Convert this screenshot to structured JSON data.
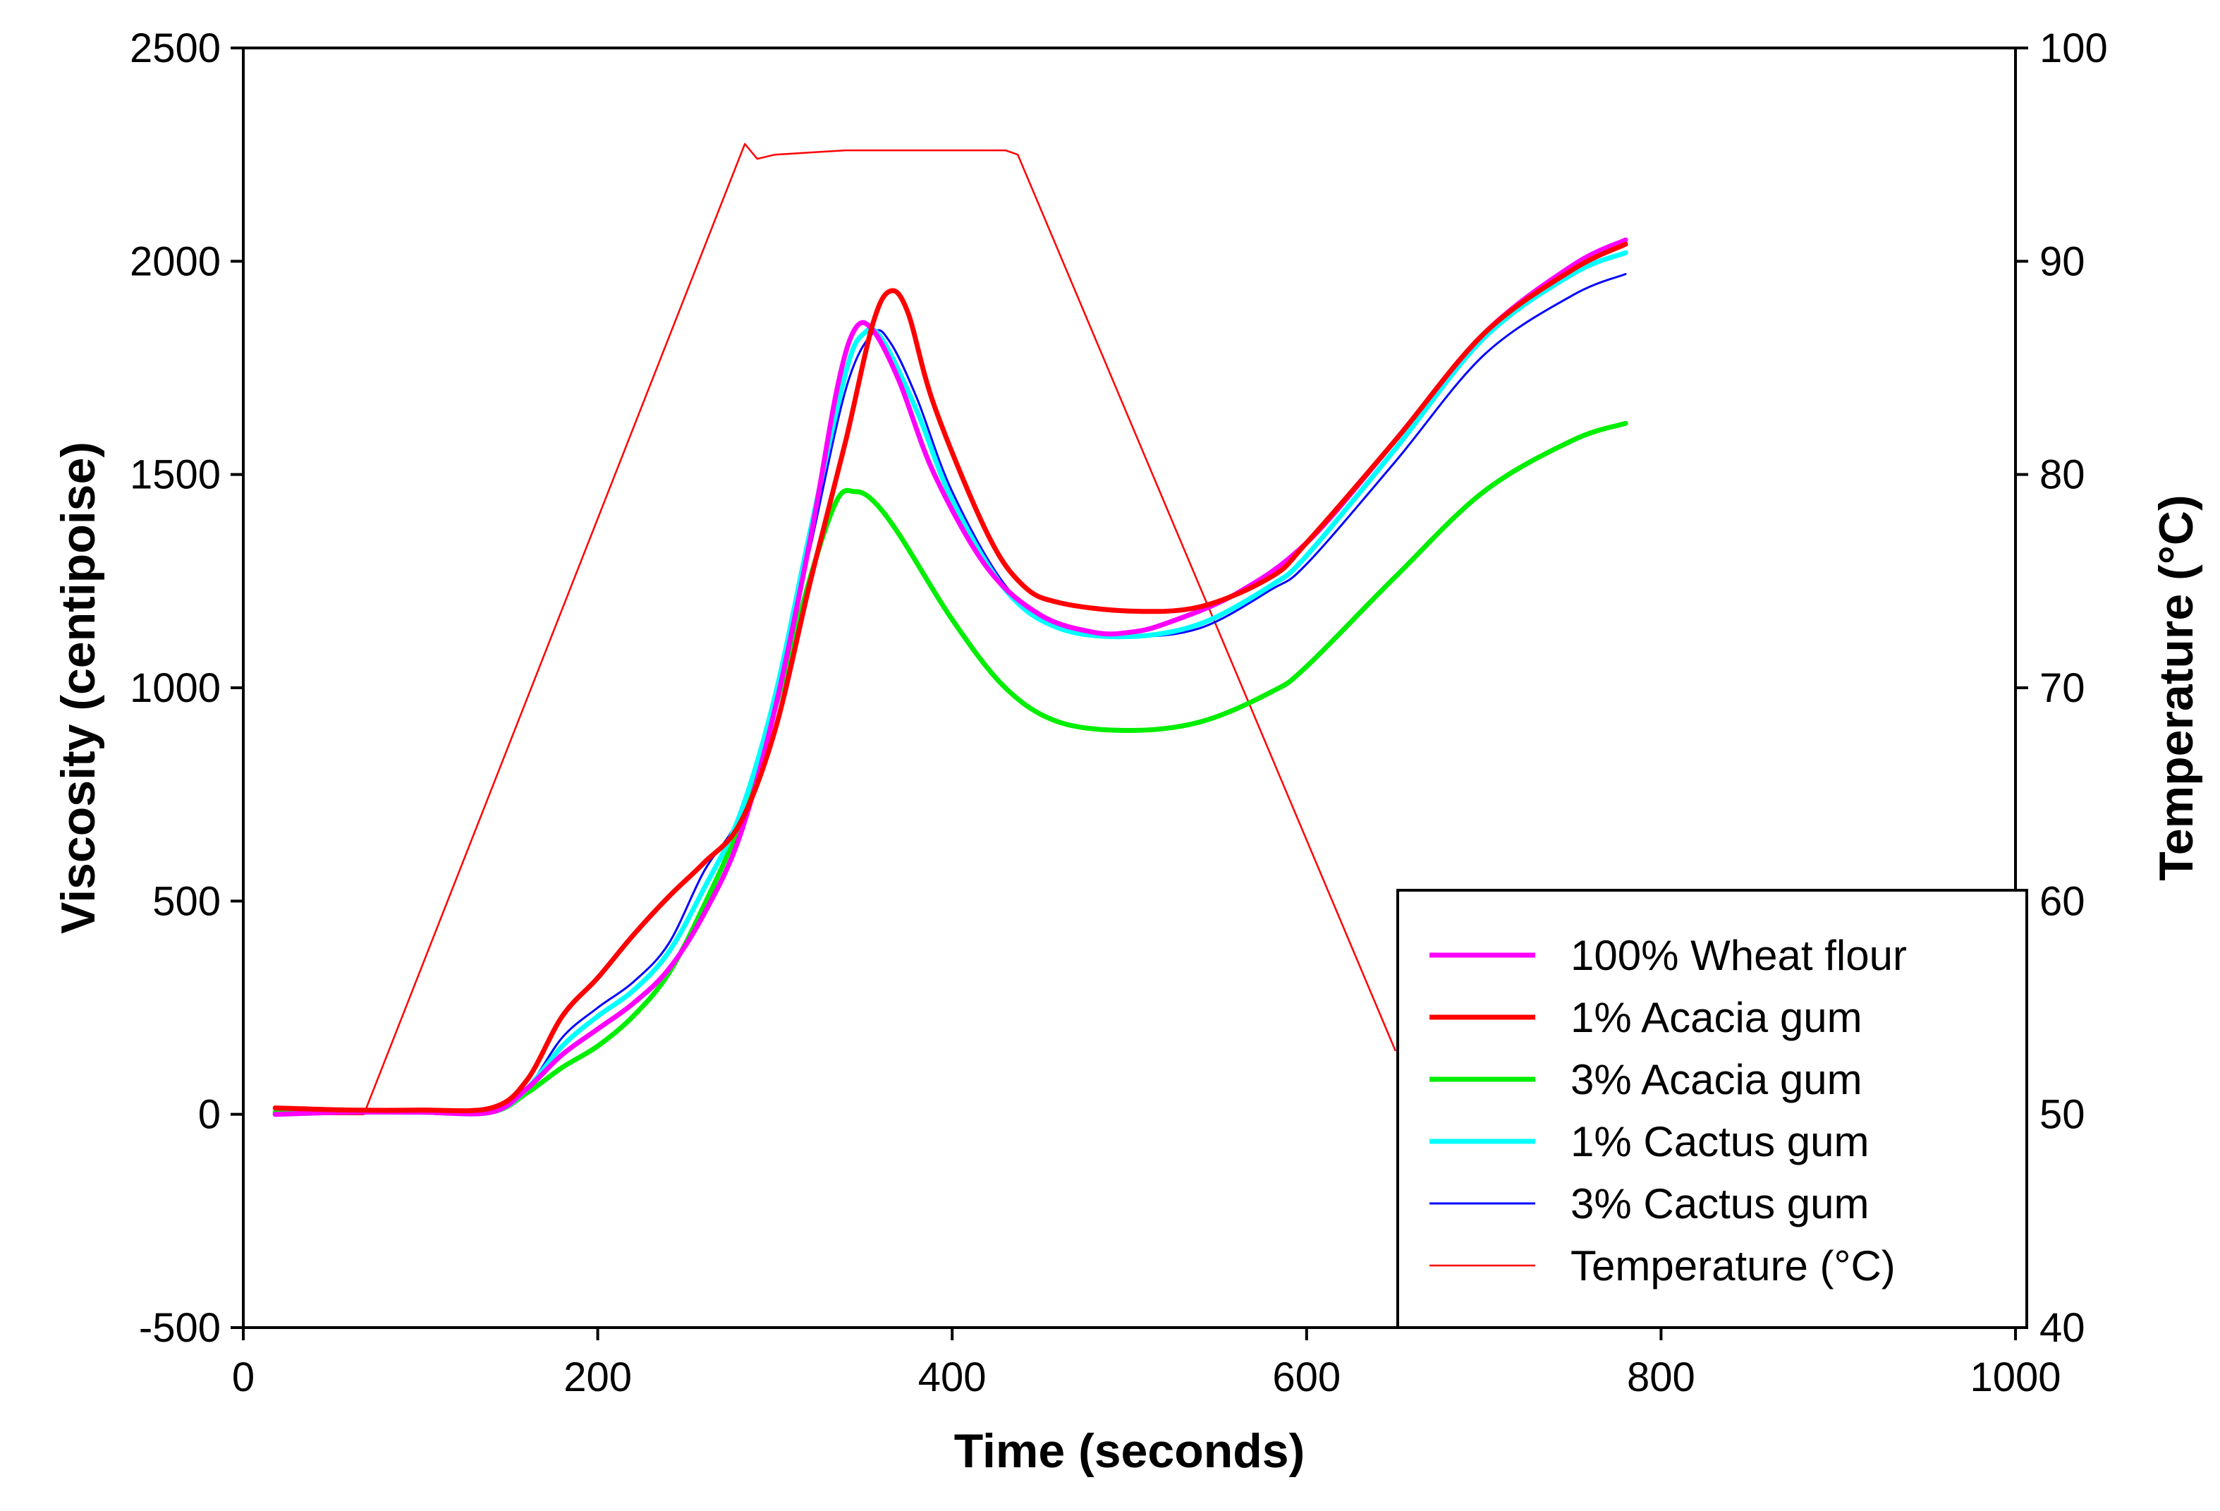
{
  "chart_data": {
    "type": "line",
    "xlabel": "Time (seconds)",
    "ylabel": "Viscosity (centipoise)",
    "y2label": "Temperature (°C)",
    "xlim": [
      0,
      1000
    ],
    "ylim": [
      -500,
      2500
    ],
    "y2lim": [
      40,
      100
    ],
    "xticks": [
      0,
      200,
      400,
      600,
      800,
      1000
    ],
    "yticks": [
      -500,
      0,
      500,
      1000,
      1500,
      2000,
      2500
    ],
    "y2ticks": [
      40,
      50,
      60,
      70,
      80,
      90,
      100
    ],
    "grid": false,
    "legend_position": "bottom-right",
    "series": [
      {
        "name": "100% Wheat flour",
        "color": "#ff00ff",
        "axis": "left",
        "x": [
          18,
          60,
          100,
          140,
          160,
          180,
          200,
          220,
          240,
          260,
          280,
          300,
          320,
          335,
          345,
          355,
          370,
          390,
          420,
          450,
          480,
          500,
          520,
          560,
          600,
          650,
          700,
          750,
          780
        ],
        "y": [
          0,
          5,
          5,
          5,
          60,
          140,
          200,
          260,
          340,
          470,
          650,
          950,
          1350,
          1700,
          1840,
          1840,
          1720,
          1500,
          1280,
          1170,
          1130,
          1130,
          1150,
          1220,
          1340,
          1580,
          1830,
          1990,
          2050
        ]
      },
      {
        "name": "1% Acacia gum",
        "color": "#ff0000",
        "axis": "left",
        "x": [
          18,
          60,
          100,
          140,
          160,
          180,
          200,
          220,
          240,
          260,
          280,
          300,
          320,
          340,
          355,
          365,
          375,
          390,
          420,
          440,
          460,
          500,
          540,
          580,
          600,
          650,
          700,
          750,
          780
        ],
        "y": [
          15,
          10,
          10,
          15,
          80,
          230,
          320,
          420,
          510,
          590,
          680,
          900,
          1250,
          1580,
          1850,
          1930,
          1880,
          1660,
          1360,
          1240,
          1200,
          1180,
          1190,
          1260,
          1340,
          1580,
          1830,
          1980,
          2040
        ]
      },
      {
        "name": "3% Acacia gum",
        "color": "#00ee00",
        "axis": "left",
        "x": [
          18,
          60,
          100,
          140,
          160,
          180,
          200,
          220,
          240,
          260,
          280,
          300,
          320,
          335,
          345,
          355,
          370,
          400,
          430,
          460,
          500,
          540,
          580,
          600,
          650,
          700,
          750,
          780
        ],
        "y": [
          5,
          5,
          5,
          5,
          50,
          110,
          160,
          230,
          330,
          490,
          680,
          950,
          1260,
          1440,
          1460,
          1440,
          1360,
          1160,
          1000,
          920,
          900,
          920,
          990,
          1050,
          1260,
          1460,
          1580,
          1620
        ]
      },
      {
        "name": "1% Cactus gum",
        "color": "#00ffff",
        "axis": "left",
        "x": [
          18,
          60,
          100,
          140,
          160,
          180,
          200,
          220,
          240,
          260,
          280,
          300,
          320,
          340,
          350,
          360,
          380,
          400,
          430,
          460,
          500,
          540,
          580,
          600,
          650,
          700,
          750,
          780
        ],
        "y": [
          0,
          5,
          5,
          5,
          60,
          160,
          230,
          290,
          380,
          530,
          700,
          980,
          1370,
          1740,
          1830,
          1820,
          1650,
          1440,
          1230,
          1140,
          1120,
          1150,
          1240,
          1310,
          1560,
          1820,
          1970,
          2020
        ]
      },
      {
        "name": "3% Cactus gum",
        "color": "#0000ff",
        "axis": "left",
        "x": [
          18,
          60,
          100,
          140,
          160,
          180,
          200,
          220,
          240,
          260,
          280,
          300,
          320,
          340,
          355,
          365,
          380,
          400,
          430,
          460,
          500,
          540,
          580,
          600,
          650,
          700,
          750,
          780
        ],
        "y": [
          0,
          5,
          5,
          5,
          60,
          180,
          250,
          310,
          400,
          570,
          700,
          960,
          1330,
          1700,
          1830,
          1810,
          1680,
          1460,
          1240,
          1140,
          1120,
          1140,
          1230,
          1290,
          1530,
          1780,
          1920,
          1970
        ]
      },
      {
        "name": "Temperature (°C)",
        "color": "#ff0000",
        "axis": "right",
        "x": [
          18,
          68,
          283,
          290,
          300,
          340,
          430,
          437,
          650
        ],
        "y": [
          50,
          50,
          95.5,
          94.8,
          95,
          95.2,
          95.2,
          95,
          53
        ]
      }
    ]
  }
}
